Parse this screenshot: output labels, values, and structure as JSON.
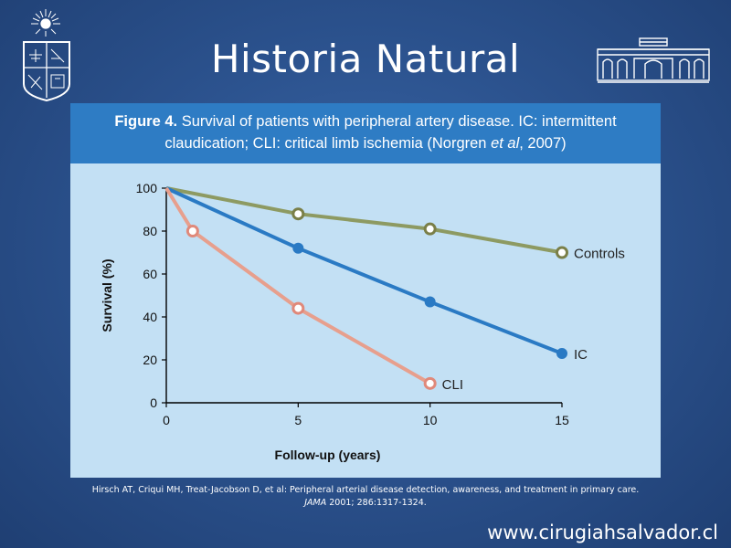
{
  "slide": {
    "title": "Historia Natural",
    "website": "www.cirugiahsalvador.cl"
  },
  "figure": {
    "caption_label": "Figure 4.",
    "caption_text_1": "Survival of patients with peripheral artery disease. IC: intermittent",
    "caption_line2_a": "claudication; CLI: critical limb ischemia  (Norgren ",
    "caption_line2_etal": "et al",
    "caption_line2_b": ", 2007)"
  },
  "reference": {
    "text_a": "Hirsch AT, Criqui MH, Treat-Jacobson D, et al: Peripheral arterial disease detection, awareness, and treatment in primary care. ",
    "journal": "JAMA",
    "text_b": " 2001; 286:1317-1324."
  },
  "chart_data": {
    "type": "line",
    "xlabel": "Follow-up (years)",
    "ylabel": "Survival (%)",
    "xlim": [
      0,
      15
    ],
    "ylim": [
      0,
      100
    ],
    "x_ticks": [
      0,
      5,
      10,
      15
    ],
    "y_ticks": [
      0,
      20,
      40,
      60,
      80,
      100
    ],
    "grid": false,
    "series": [
      {
        "name": "Controls",
        "color": "#8d9a62",
        "marker_stroke": "#7a7f48",
        "points": [
          [
            0,
            100
          ],
          [
            5,
            88
          ],
          [
            10,
            81
          ],
          [
            15,
            70
          ]
        ],
        "hollow_from": 1
      },
      {
        "name": "IC",
        "color": "#2a7ac4",
        "marker_stroke": "#2a7ac4",
        "points": [
          [
            0,
            100
          ],
          [
            5,
            72
          ],
          [
            10,
            47
          ],
          [
            15,
            23
          ]
        ],
        "hollow_from": 99
      },
      {
        "name": "CLI",
        "color": "#e79f8d",
        "marker_stroke": "#e0897a",
        "points": [
          [
            0,
            100
          ],
          [
            1,
            80
          ],
          [
            5,
            44
          ],
          [
            10,
            9
          ]
        ],
        "hollow_from": 1
      }
    ]
  },
  "icons": {
    "left_logo": "university-crest-logo",
    "right_logo": "hospital-building-logo"
  }
}
